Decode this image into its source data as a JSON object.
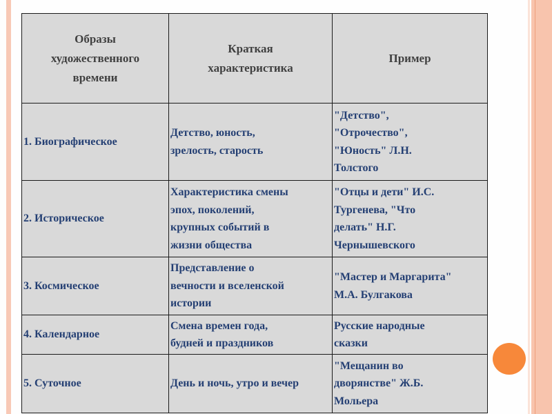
{
  "table": {
    "headers": [
      "Образы\nхудожественного\nвремени",
      "Краткая\nхарактеристика",
      "Пример"
    ],
    "rows": [
      [
        "1. Биографическое",
        "Детство, юность,\nзрелость, старость",
        "\"Детство\",\n\"Отрочество\",\n\"Юность\" Л.Н.\nТолстого"
      ],
      [
        "2. Историческое",
        "Характеристика смены\nэпох, поколений,\nкрупных событий в\nжизни общества",
        "\"Отцы и дети\" И.С.\nТургенева, \"Что\nделать\" Н.Г.\nЧернышевского"
      ],
      [
        "3. Космическое",
        "Представление о\nвечности и вселенской\nистории",
        "\"Мастер и Маргарита\"\nМ.А. Булгакова"
      ],
      [
        "4. Календарное",
        "   Смена времен года,\nбудней и праздников",
        "Русские народные\nсказки"
      ],
      [
        "5. Суточное",
        "День и ночь, утро и вечер",
        "     \"Мещанин во\n     дворянстве\" Ж.Б.\nМольера"
      ]
    ]
  },
  "colors": {
    "cell_bg": "#d9d9d9",
    "header_text": "#404040",
    "body_text": "#243f73",
    "accent": "#f7883a",
    "stripe": "#f8c7b0"
  }
}
